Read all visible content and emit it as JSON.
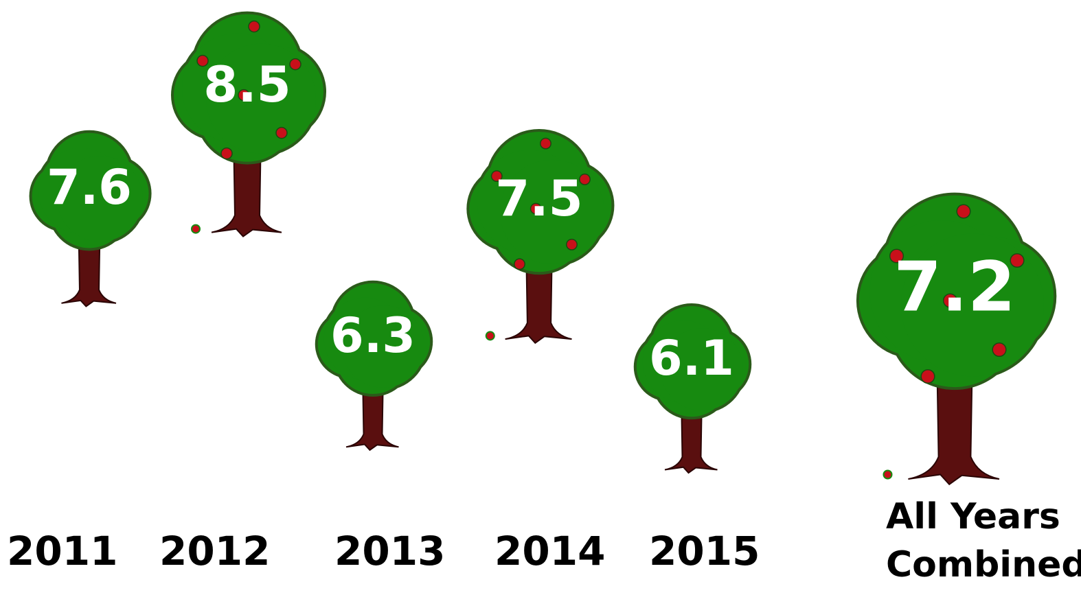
{
  "chart_data": {
    "type": "tree-pictograph",
    "categories": [
      "2011",
      "2012",
      "2013",
      "2014",
      "2015",
      "All Years Combined"
    ],
    "values": [
      7.6,
      8.5,
      6.3,
      7.5,
      6.1,
      7.2
    ],
    "color": "#178a10"
  }
}
